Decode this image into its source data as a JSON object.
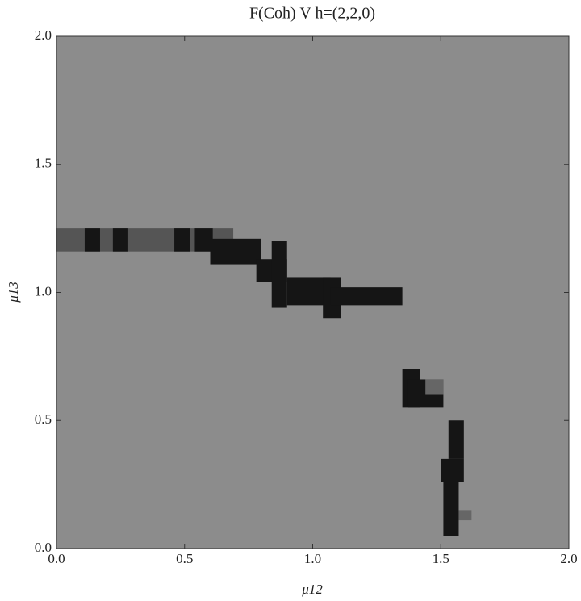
{
  "chart_data": {
    "type": "region",
    "title": "F(Coh) V h=(2,2,0)",
    "x_label": "μ12",
    "y_label": "μ13",
    "background": "#8c8c8c",
    "xlim": [
      0,
      2
    ],
    "ylim": [
      0,
      2
    ],
    "xticks": [
      {
        "value": 0,
        "label": "0.0"
      },
      0.5,
      {
        "value": 1,
        "label": "1.0"
      },
      1.5,
      {
        "value": 2,
        "label": "2.0"
      }
    ],
    "yticks": [
      {
        "value": 0,
        "label": "0.0"
      },
      0.5,
      {
        "value": 1,
        "label": "1.0"
      },
      1.5,
      {
        "value": 2,
        "label": "2.0"
      }
    ],
    "regions": [
      {
        "x": [
          0,
          0.69
        ],
        "y": [
          1.16,
          1.25
        ],
        "color": "#555555"
      },
      {
        "x": [
          0.11,
          0.17
        ],
        "y": [
          1.16,
          1.25
        ],
        "color": "#151515"
      },
      {
        "x": [
          0.22,
          0.28
        ],
        "y": [
          1.16,
          1.25
        ],
        "color": "#151515"
      },
      {
        "x": [
          0.46,
          0.52
        ],
        "y": [
          1.16,
          1.25
        ],
        "color": "#151515"
      },
      {
        "x": [
          0.54,
          0.61
        ],
        "y": [
          1.16,
          1.25
        ],
        "color": "#151515"
      },
      {
        "x": [
          0.6,
          0.8
        ],
        "y": [
          1.11,
          1.21
        ],
        "color": "#151515"
      },
      {
        "x": [
          0.78,
          0.9
        ],
        "y": [
          1.04,
          1.13
        ],
        "color": "#151515"
      },
      {
        "x": [
          0.84,
          0.9
        ],
        "y": [
          0.94,
          1.2
        ],
        "color": "#151515"
      },
      {
        "x": [
          0.9,
          1.07
        ],
        "y": [
          0.95,
          1.06
        ],
        "color": "#151515"
      },
      {
        "x": [
          1.04,
          1.11
        ],
        "y": [
          0.9,
          1.06
        ],
        "color": "#151515"
      },
      {
        "x": [
          1.07,
          1.35
        ],
        "y": [
          0.95,
          1.02
        ],
        "color": "#151515"
      },
      {
        "x": [
          1.35,
          1.42
        ],
        "y": [
          0.55,
          0.7
        ],
        "color": "#151515"
      },
      {
        "x": [
          1.37,
          1.51
        ],
        "y": [
          0.55,
          0.66
        ],
        "color": "#151515"
      },
      {
        "x": [
          1.44,
          1.51
        ],
        "y": [
          0.6,
          0.66
        ],
        "color": "#666666"
      },
      {
        "x": [
          1.53,
          1.59
        ],
        "y": [
          0.35,
          0.5
        ],
        "color": "#151515"
      },
      {
        "x": [
          1.5,
          1.59
        ],
        "y": [
          0.26,
          0.35
        ],
        "color": "#151515"
      },
      {
        "x": [
          1.51,
          1.57
        ],
        "y": [
          0.05,
          0.26
        ],
        "color": "#151515"
      },
      {
        "x": [
          1.57,
          1.62
        ],
        "y": [
          0.11,
          0.15
        ],
        "color": "#666666"
      }
    ]
  }
}
